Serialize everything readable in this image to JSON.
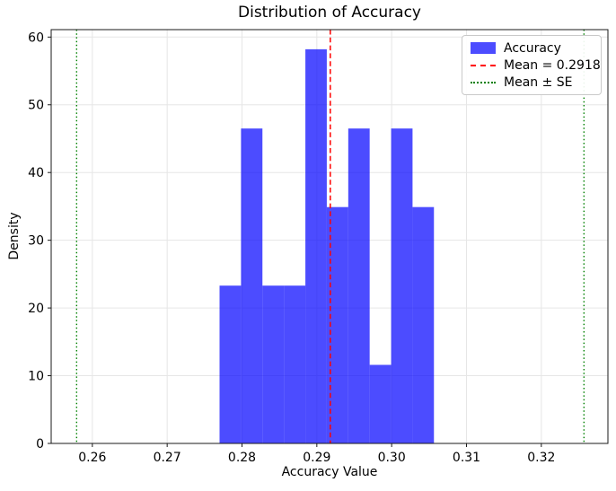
{
  "chart_data": {
    "type": "histogram",
    "title": "Distribution of Accuracy",
    "xlabel": "Accuracy Value",
    "ylabel": "Density",
    "xlim": [
      0.2545,
      0.3289
    ],
    "ylim": [
      0,
      61.1
    ],
    "xtick_labels": [
      "0.26",
      "0.27",
      "0.28",
      "0.29",
      "0.30",
      "0.31",
      "0.32"
    ],
    "xtick_values": [
      0.26,
      0.27,
      0.28,
      0.29,
      0.3,
      0.31,
      0.32
    ],
    "ytick_values": [
      0,
      10,
      20,
      30,
      40,
      50,
      60
    ],
    "grid": true,
    "bins": {
      "edges": [
        0.277,
        0.27987,
        0.28273,
        0.2856,
        0.28847,
        0.29133,
        0.2942,
        0.29706,
        0.29993,
        0.30279,
        0.30565
      ]
    },
    "densities": [
      23.3,
      46.5,
      23.3,
      23.3,
      58.2,
      34.9,
      46.5,
      11.6,
      46.5,
      34.9
    ],
    "mean": 0.2918,
    "se_lines": [
      0.2579,
      0.3257
    ],
    "legend": {
      "position": "upper right",
      "items": [
        {
          "label": "Accuracy",
          "type": "patch",
          "color": "#0000FF",
          "opacity": 0.7
        },
        {
          "label": "Mean = 0.2918",
          "type": "dashed-line",
          "color": "#FF0000"
        },
        {
          "label": "Mean ± SE",
          "type": "dotted-line",
          "color": "#008000"
        }
      ]
    },
    "colors": {
      "bar": "#0000FF",
      "bar_opacity": 0.7,
      "mean_line": "#FF0000",
      "se_line": "#008000",
      "grid": "#E6E6E6",
      "spine": "#1A1A1A",
      "text": "#000000",
      "background": "#FFFFFF"
    }
  }
}
